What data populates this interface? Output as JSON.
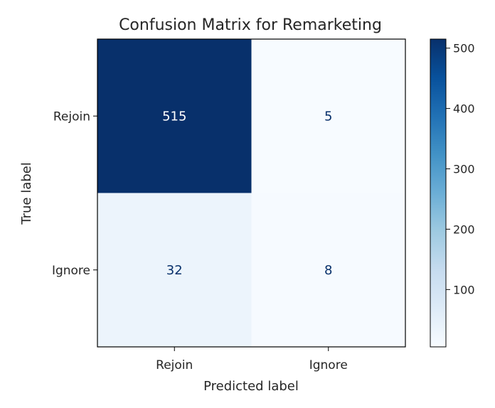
{
  "chart_data": {
    "type": "heatmap",
    "title": "Confusion Matrix for Remarketing",
    "xlabel": "Predicted label",
    "ylabel": "True label",
    "x_categories": [
      "Rejoin",
      "Ignore"
    ],
    "y_categories": [
      "Rejoin",
      "Ignore"
    ],
    "values": [
      [
        515,
        5
      ],
      [
        32,
        8
      ]
    ],
    "colormap": "Blues",
    "colorbar": {
      "ticks": [
        100,
        200,
        300,
        400,
        500
      ],
      "tick_labels": [
        "100",
        "200",
        "300",
        "400",
        "500"
      ],
      "min": 5,
      "max": 515
    },
    "colors": {
      "cell_max": "#08306b",
      "cell_min": "#f7fbff",
      "text_on_dark": "#ffffff",
      "text_on_light": "#08306b"
    }
  }
}
